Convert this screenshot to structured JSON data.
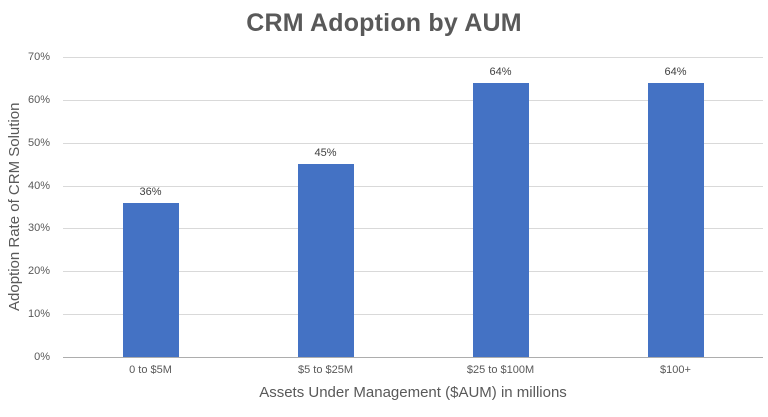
{
  "chart_data": {
    "type": "bar",
    "title": "CRM Adoption by AUM",
    "xlabel": "Assets Under Management ($AUM) in millions",
    "ylabel": "Adoption Rate of CRM Solution",
    "categories": [
      "0 to $5M",
      "$5 to $25M",
      "$25 to $100M",
      "$100+"
    ],
    "values": [
      36,
      45,
      64,
      64
    ],
    "data_labels": [
      "36%",
      "45%",
      "64%",
      "64%"
    ],
    "ylim": [
      0,
      70
    ],
    "ytick_step": 10,
    "ytick_labels": [
      "0%",
      "10%",
      "20%",
      "30%",
      "40%",
      "50%",
      "60%",
      "70%"
    ],
    "grid": true,
    "legend_position": "none"
  },
  "colors": {
    "bar": "#4472C4",
    "title_text": "#595959",
    "axis_text": "#595959",
    "data_label_text": "#404040",
    "gridline": "#D9D9D9",
    "axis_line": "#ADADAD",
    "background": "#FFFFFF"
  }
}
